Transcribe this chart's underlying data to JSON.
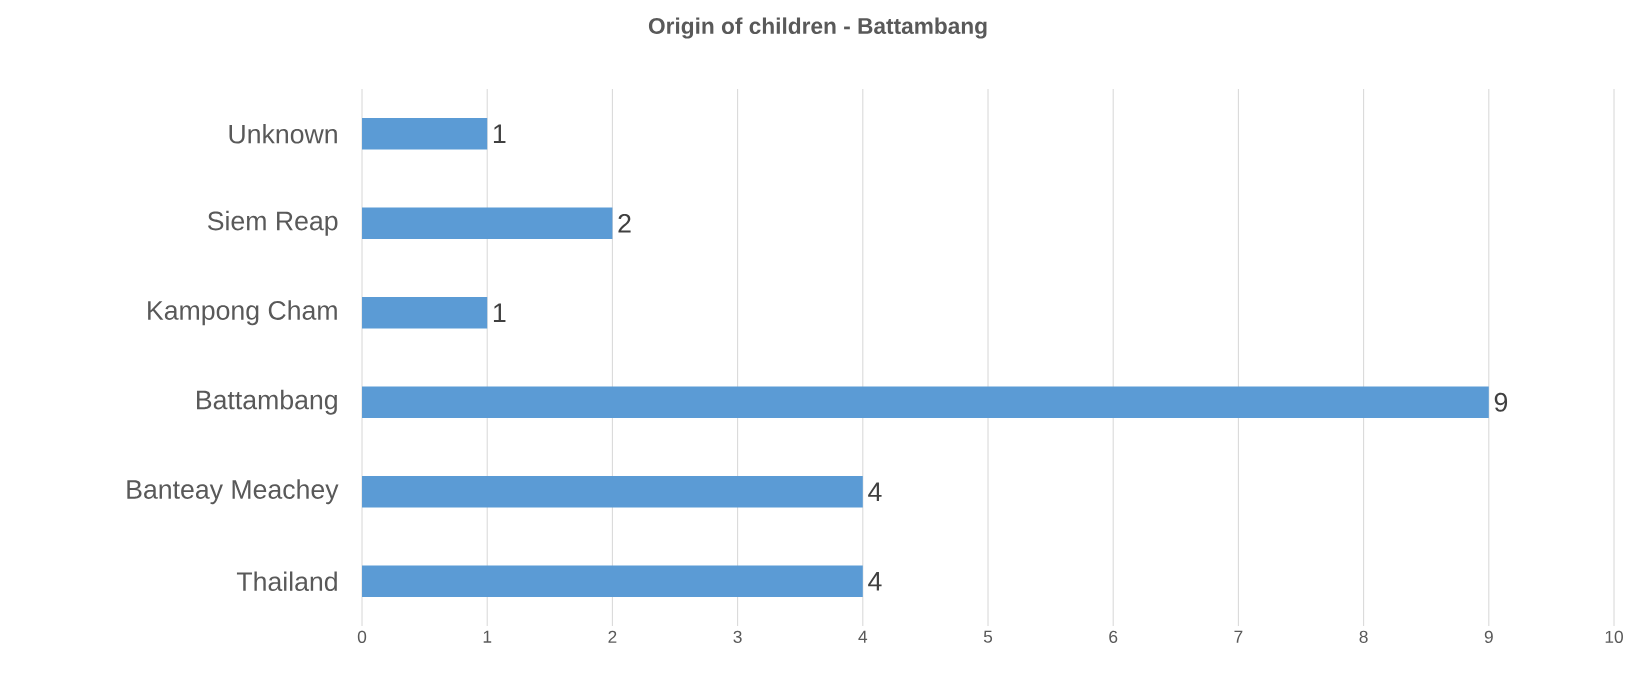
{
  "chart_data": {
    "type": "bar",
    "orientation": "horizontal",
    "title": "Origin of children - Battambang",
    "categories": [
      "Unknown",
      "Siem Reap",
      "Kampong Cham",
      "Battambang",
      "Banteay Meachey",
      "Thailand"
    ],
    "values": [
      1,
      2,
      1,
      9,
      4,
      4
    ],
    "color": "#5b9bd5",
    "xlim": [
      0,
      10
    ],
    "xticks": [
      0,
      1,
      2,
      3,
      4,
      5,
      6,
      7,
      8,
      9,
      10
    ],
    "grid": "x",
    "data_labels": true
  }
}
